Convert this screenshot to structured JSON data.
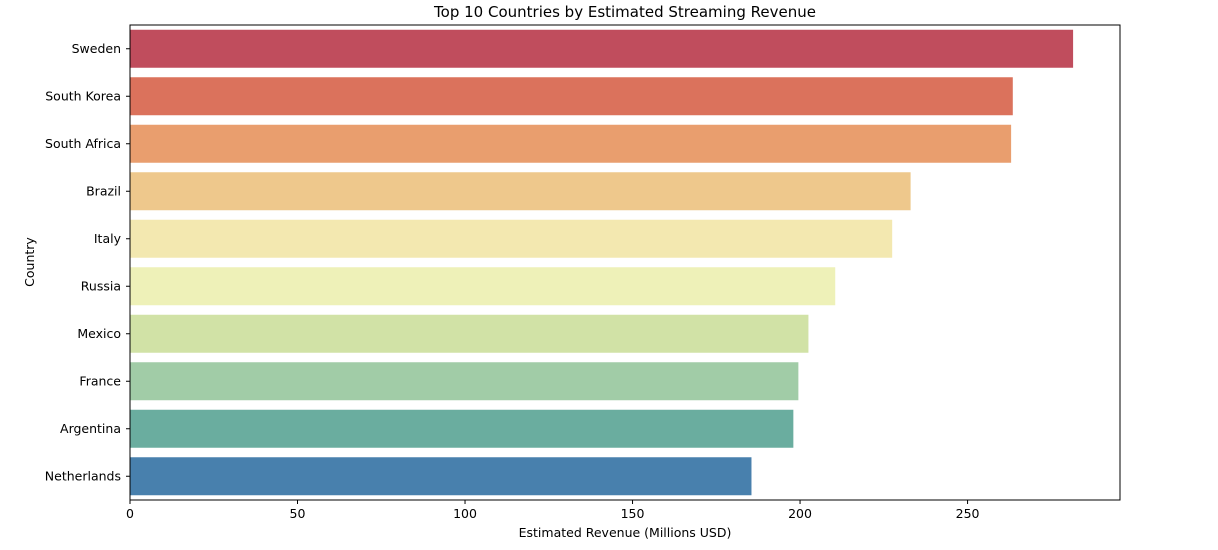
{
  "chart_data": {
    "type": "bar",
    "orientation": "horizontal",
    "title": "Top 10 Countries by Estimated Streaming Revenue",
    "xlabel": "Estimated Revenue (Millions USD)",
    "ylabel": "Country",
    "xlim": [
      0,
      295.5
    ],
    "xticks": [
      0,
      50,
      100,
      150,
      200,
      250
    ],
    "grid": false,
    "categories": [
      "Sweden",
      "South Korea",
      "South Africa",
      "Brazil",
      "Italy",
      "Russia",
      "Mexico",
      "France",
      "Argentina",
      "Netherlands"
    ],
    "values": [
      281.5,
      263.5,
      263,
      233,
      227.5,
      210.5,
      202.5,
      199.5,
      198,
      185.5
    ],
    "colors": [
      "#c04d5d",
      "#db725c",
      "#e99e6e",
      "#eec88c",
      "#f3e8b0",
      "#eef1b8",
      "#d1e2a6",
      "#a1cca7",
      "#6aad9f",
      "#4880ad"
    ]
  }
}
